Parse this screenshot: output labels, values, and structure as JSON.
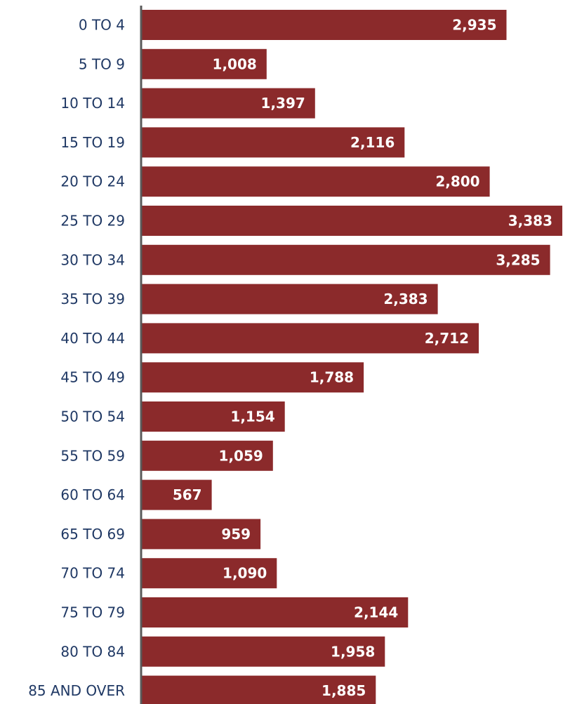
{
  "chart_data": {
    "type": "bar",
    "orientation": "horizontal",
    "categories": [
      "0 TO 4",
      "5 TO 9",
      "10 TO 14",
      "15 TO 19",
      "20 TO 24",
      "25 TO 29",
      "30 TO 34",
      "35 TO 39",
      "40 TO 44",
      "45 TO 49",
      "50 TO 54",
      "55 TO 59",
      "60 TO 64",
      "65 TO 69",
      "70 TO 74",
      "75 TO 79",
      "80 TO 84",
      "85 AND OVER"
    ],
    "values": [
      2935,
      1008,
      1397,
      2116,
      2800,
      3383,
      3285,
      2383,
      2712,
      1788,
      1154,
      1059,
      567,
      959,
      1090,
      2144,
      1958,
      1885
    ],
    "value_labels": [
      "2,935",
      "1,008",
      "1,397",
      "2,116",
      "2,800",
      "3,383",
      "3,285",
      "2,383",
      "2,712",
      "1,788",
      "1,154",
      "1,059",
      "567",
      "959",
      "1,090",
      "2,144",
      "1,958",
      "1,885"
    ],
    "title": "",
    "xlabel": "",
    "ylabel": "",
    "xlim": [
      0,
      3383
    ],
    "grid": false,
    "legend": "none",
    "bar_color": "#8b2a2b",
    "label_color": "#1f3864",
    "axis_color": "#595959"
  }
}
